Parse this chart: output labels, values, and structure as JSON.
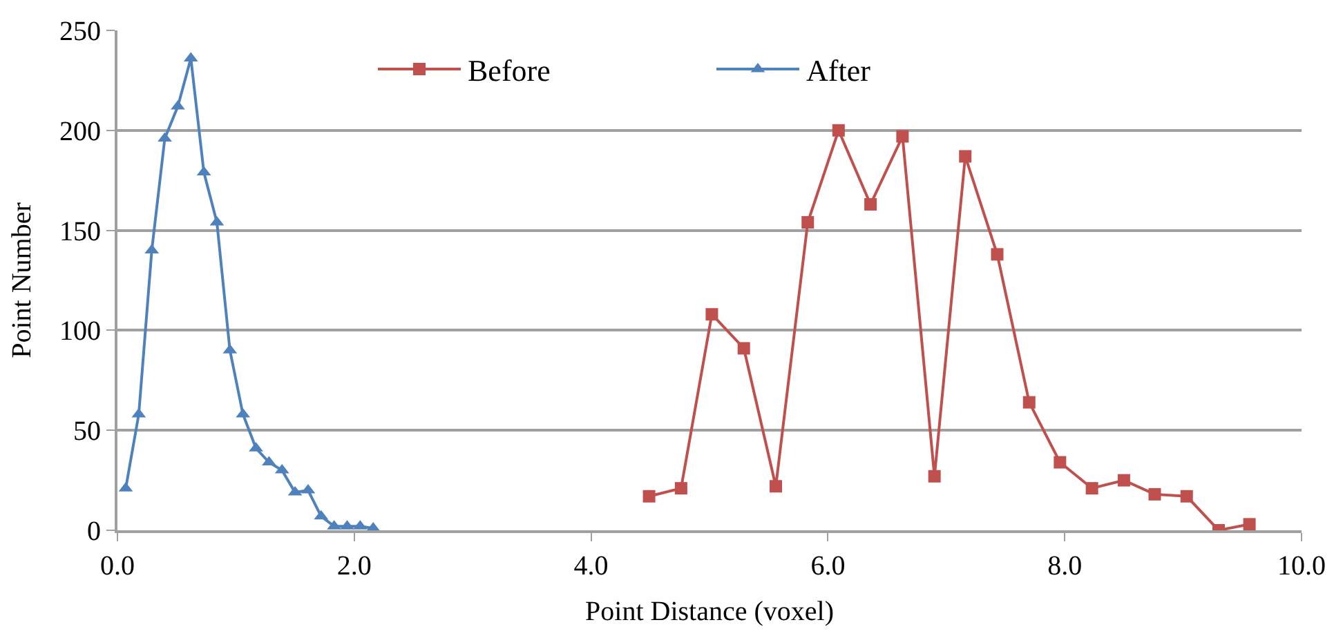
{
  "chart_data": {
    "type": "line",
    "xlabel": "Point Distance (voxel)",
    "ylabel": "Point Number",
    "series": [
      {
        "name": "Before",
        "color": "#c0504d",
        "marker": "square",
        "x": [
          4.49,
          4.76,
          5.02,
          5.29,
          5.56,
          5.83,
          6.09,
          6.36,
          6.63,
          6.9,
          7.16,
          7.43,
          7.7,
          7.96,
          8.23,
          8.5,
          8.76,
          9.03,
          9.3,
          9.56
        ],
        "values": [
          17,
          21,
          108,
          91,
          22,
          154,
          200,
          163,
          197,
          27,
          187,
          138,
          64,
          34,
          21,
          25,
          18,
          17,
          0,
          3
        ]
      },
      {
        "name": "After",
        "color": "#4f81bd",
        "marker": "triangle",
        "x": [
          0.07,
          0.18,
          0.29,
          0.4,
          0.51,
          0.62,
          0.73,
          0.84,
          0.95,
          1.06,
          1.17,
          1.28,
          1.39,
          1.5,
          1.61,
          1.72,
          1.83,
          1.94,
          2.05,
          2.16
        ],
        "values": [
          21,
          58,
          140,
          196,
          212,
          236,
          179,
          154,
          90,
          58,
          41,
          34,
          30,
          19,
          20,
          7,
          2,
          2,
          2,
          1
        ]
      }
    ],
    "xlim": [
      0,
      10
    ],
    "xticks": [
      {
        "value": 0,
        "label": "0.0"
      },
      {
        "value": 2,
        "label": "2.0"
      },
      {
        "value": 4,
        "label": "4.0"
      },
      {
        "value": 6,
        "label": "6.0"
      },
      {
        "value": 8,
        "label": "8.0"
      },
      {
        "value": 10,
        "label": "10.0"
      }
    ],
    "ylim": [
      0,
      250
    ],
    "yticks": [
      0,
      50,
      100,
      150,
      200,
      250
    ],
    "grid": "y",
    "legend": "top",
    "line_style": "solid"
  }
}
